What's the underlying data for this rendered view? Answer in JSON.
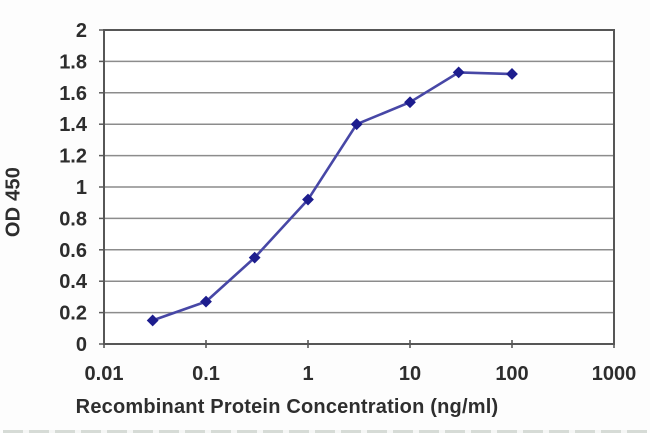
{
  "figure": {
    "background": "#fdfdfd"
  },
  "chart_data": {
    "type": "line",
    "title": "",
    "xlabel": "Recombinant Protein Concentration (ng/ml)",
    "ylabel": "OD 450",
    "x_scale": "log",
    "xlim": [
      0.01,
      1000
    ],
    "ylim": [
      0,
      2
    ],
    "x": [
      0.03,
      0.1,
      0.3,
      1,
      3,
      10,
      30,
      100
    ],
    "values": [
      0.15,
      0.27,
      0.55,
      0.92,
      1.4,
      1.54,
      1.73,
      1.72
    ],
    "x_ticks": [
      0.01,
      0.1,
      1,
      10,
      100,
      1000
    ],
    "x_tick_labels": [
      "0.01",
      "0.1",
      "1",
      "10",
      "100",
      "1000"
    ],
    "y_ticks": [
      0,
      0.2,
      0.4,
      0.6,
      0.8,
      1,
      1.2,
      1.4,
      1.6,
      1.8,
      2
    ],
    "y_tick_labels": [
      "0",
      "0.2",
      "0.4",
      "0.6",
      "0.8",
      "1",
      "1.2",
      "1.4",
      "1.6",
      "1.8",
      "2"
    ],
    "grid": "horizontal",
    "legend": "none",
    "marker": "diamond",
    "colors": {
      "line": "#4747a6",
      "marker": "#1d1d8e",
      "gridline": "#8c8c8c",
      "plot_border": "#565656",
      "tick": "#5a5a5a",
      "text": "#2d2d2d",
      "plot_background": "#ffffff"
    }
  }
}
